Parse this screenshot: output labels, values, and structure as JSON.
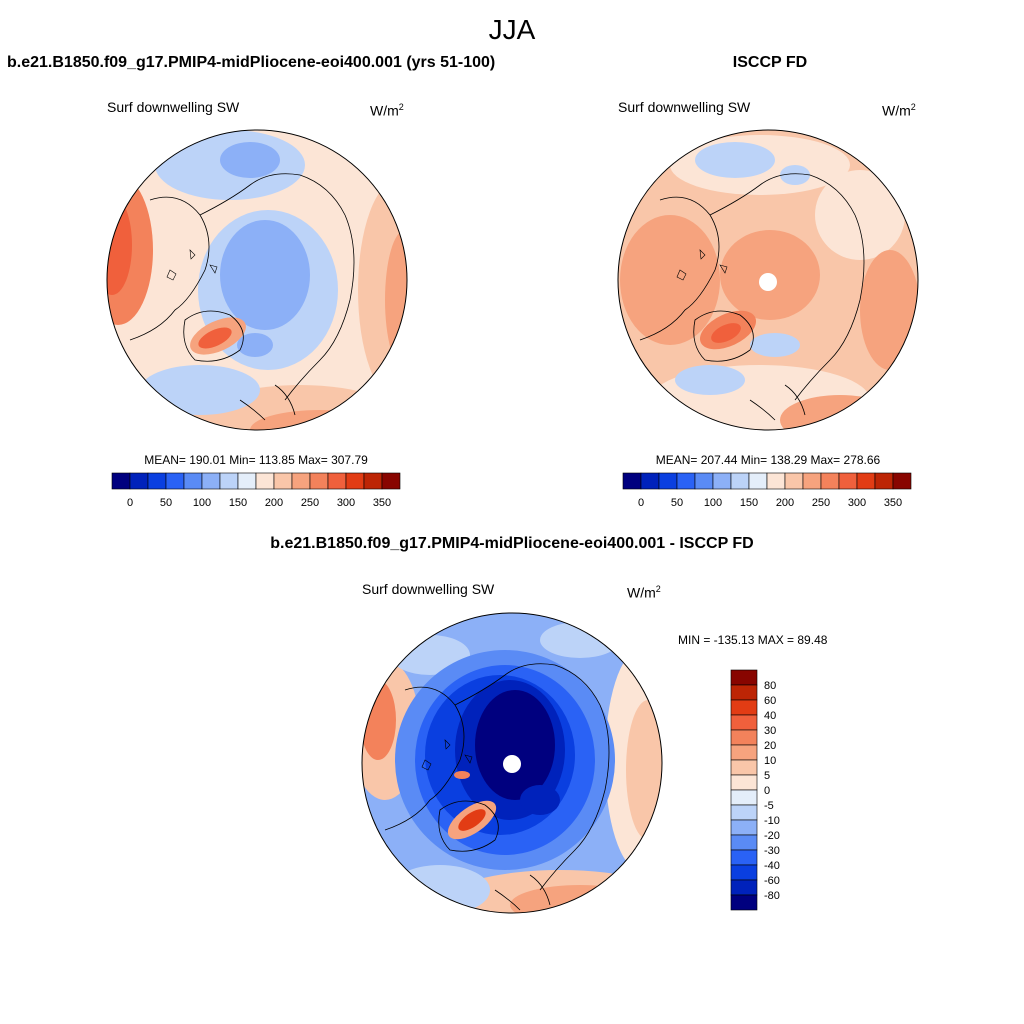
{
  "figure": {
    "season": "JJA",
    "top_left_title": "b.e21.B1850.f09_g17.PMIP4-midPliocene-eoi400.001 (yrs 51-100)",
    "top_right_title": "ISCCP FD",
    "bottom_title": "b.e21.B1850.f09_g17.PMIP4-midPliocene-eoi400.001 - ISCCP FD"
  },
  "panels": {
    "model": {
      "variable": "Surf downwelling SW",
      "unit_base": "W/m",
      "unit_exp": "2",
      "stats": "MEAN= 190.01  Min= 113.85  Max= 307.79"
    },
    "obs": {
      "variable": "Surf downwelling SW",
      "unit_base": "W/m",
      "unit_exp": "2",
      "stats": "MEAN= 207.44  Min= 138.29  Max= 278.66"
    },
    "diff": {
      "variable": "Surf downwelling SW",
      "unit_base": "W/m",
      "unit_exp": "2",
      "stats": "MIN = -135.13 MAX =  89.48"
    }
  },
  "chart_data": [
    {
      "type": "heatmap",
      "projection": "north polar stereographic",
      "title": "b.e21.B1850.f09_g17.PMIP4-midPliocene-eoi400.001 (yrs 51-100)",
      "variable": "Surf downwelling SW",
      "units": "W/m2",
      "mean": 190.01,
      "min": 113.85,
      "max": 307.79,
      "colorbar": {
        "orientation": "horizontal",
        "colors": [
          "#00007f",
          "#0022bb",
          "#0a3fe0",
          "#2a62f5",
          "#5a8bf5",
          "#8cb0f7",
          "#bcd3f8",
          "#e4eefa",
          "#fce5d6",
          "#f9c6a9",
          "#f6a37e",
          "#f3825b",
          "#f0603c",
          "#e23c14",
          "#bd2505",
          "#880500"
        ],
        "tick_labels": [
          "0",
          "50",
          "100",
          "150",
          "200",
          "250",
          "300",
          "350"
        ]
      }
    },
    {
      "type": "heatmap",
      "projection": "north polar stereographic",
      "title": "ISCCP FD",
      "variable": "Surf downwelling SW",
      "units": "W/m2",
      "mean": 207.44,
      "min": 138.29,
      "max": 278.66,
      "colorbar": {
        "orientation": "horizontal",
        "colors": [
          "#00007f",
          "#0022bb",
          "#0a3fe0",
          "#2a62f5",
          "#5a8bf5",
          "#8cb0f7",
          "#bcd3f8",
          "#e4eefa",
          "#fce5d6",
          "#f9c6a9",
          "#f6a37e",
          "#f3825b",
          "#f0603c",
          "#e23c14",
          "#bd2505",
          "#880500"
        ],
        "tick_labels": [
          "0",
          "50",
          "100",
          "150",
          "200",
          "250",
          "300",
          "350"
        ]
      }
    },
    {
      "type": "heatmap",
      "projection": "north polar stereographic",
      "title": "b.e21.B1850.f09_g17.PMIP4-midPliocene-eoi400.001 - ISCCP FD",
      "variable": "Surf downwelling SW",
      "units": "W/m2",
      "min": -135.13,
      "max": 89.48,
      "colorbar": {
        "orientation": "vertical",
        "colors_top_to_bottom": [
          "#880500",
          "#bd2505",
          "#e23c14",
          "#f0603c",
          "#f3825b",
          "#f6a37e",
          "#f9c6a9",
          "#fce5d6",
          "#e4eefa",
          "#bcd3f8",
          "#8cb0f7",
          "#5a8bf5",
          "#2a62f5",
          "#0a3fe0",
          "#0022bb",
          "#00007f"
        ],
        "tick_labels_top_to_bottom": [
          "80",
          "60",
          "40",
          "30",
          "20",
          "10",
          "5",
          "0",
          "-5",
          "-10",
          "-20",
          "-30",
          "-40",
          "-60",
          "-80"
        ]
      }
    }
  ]
}
